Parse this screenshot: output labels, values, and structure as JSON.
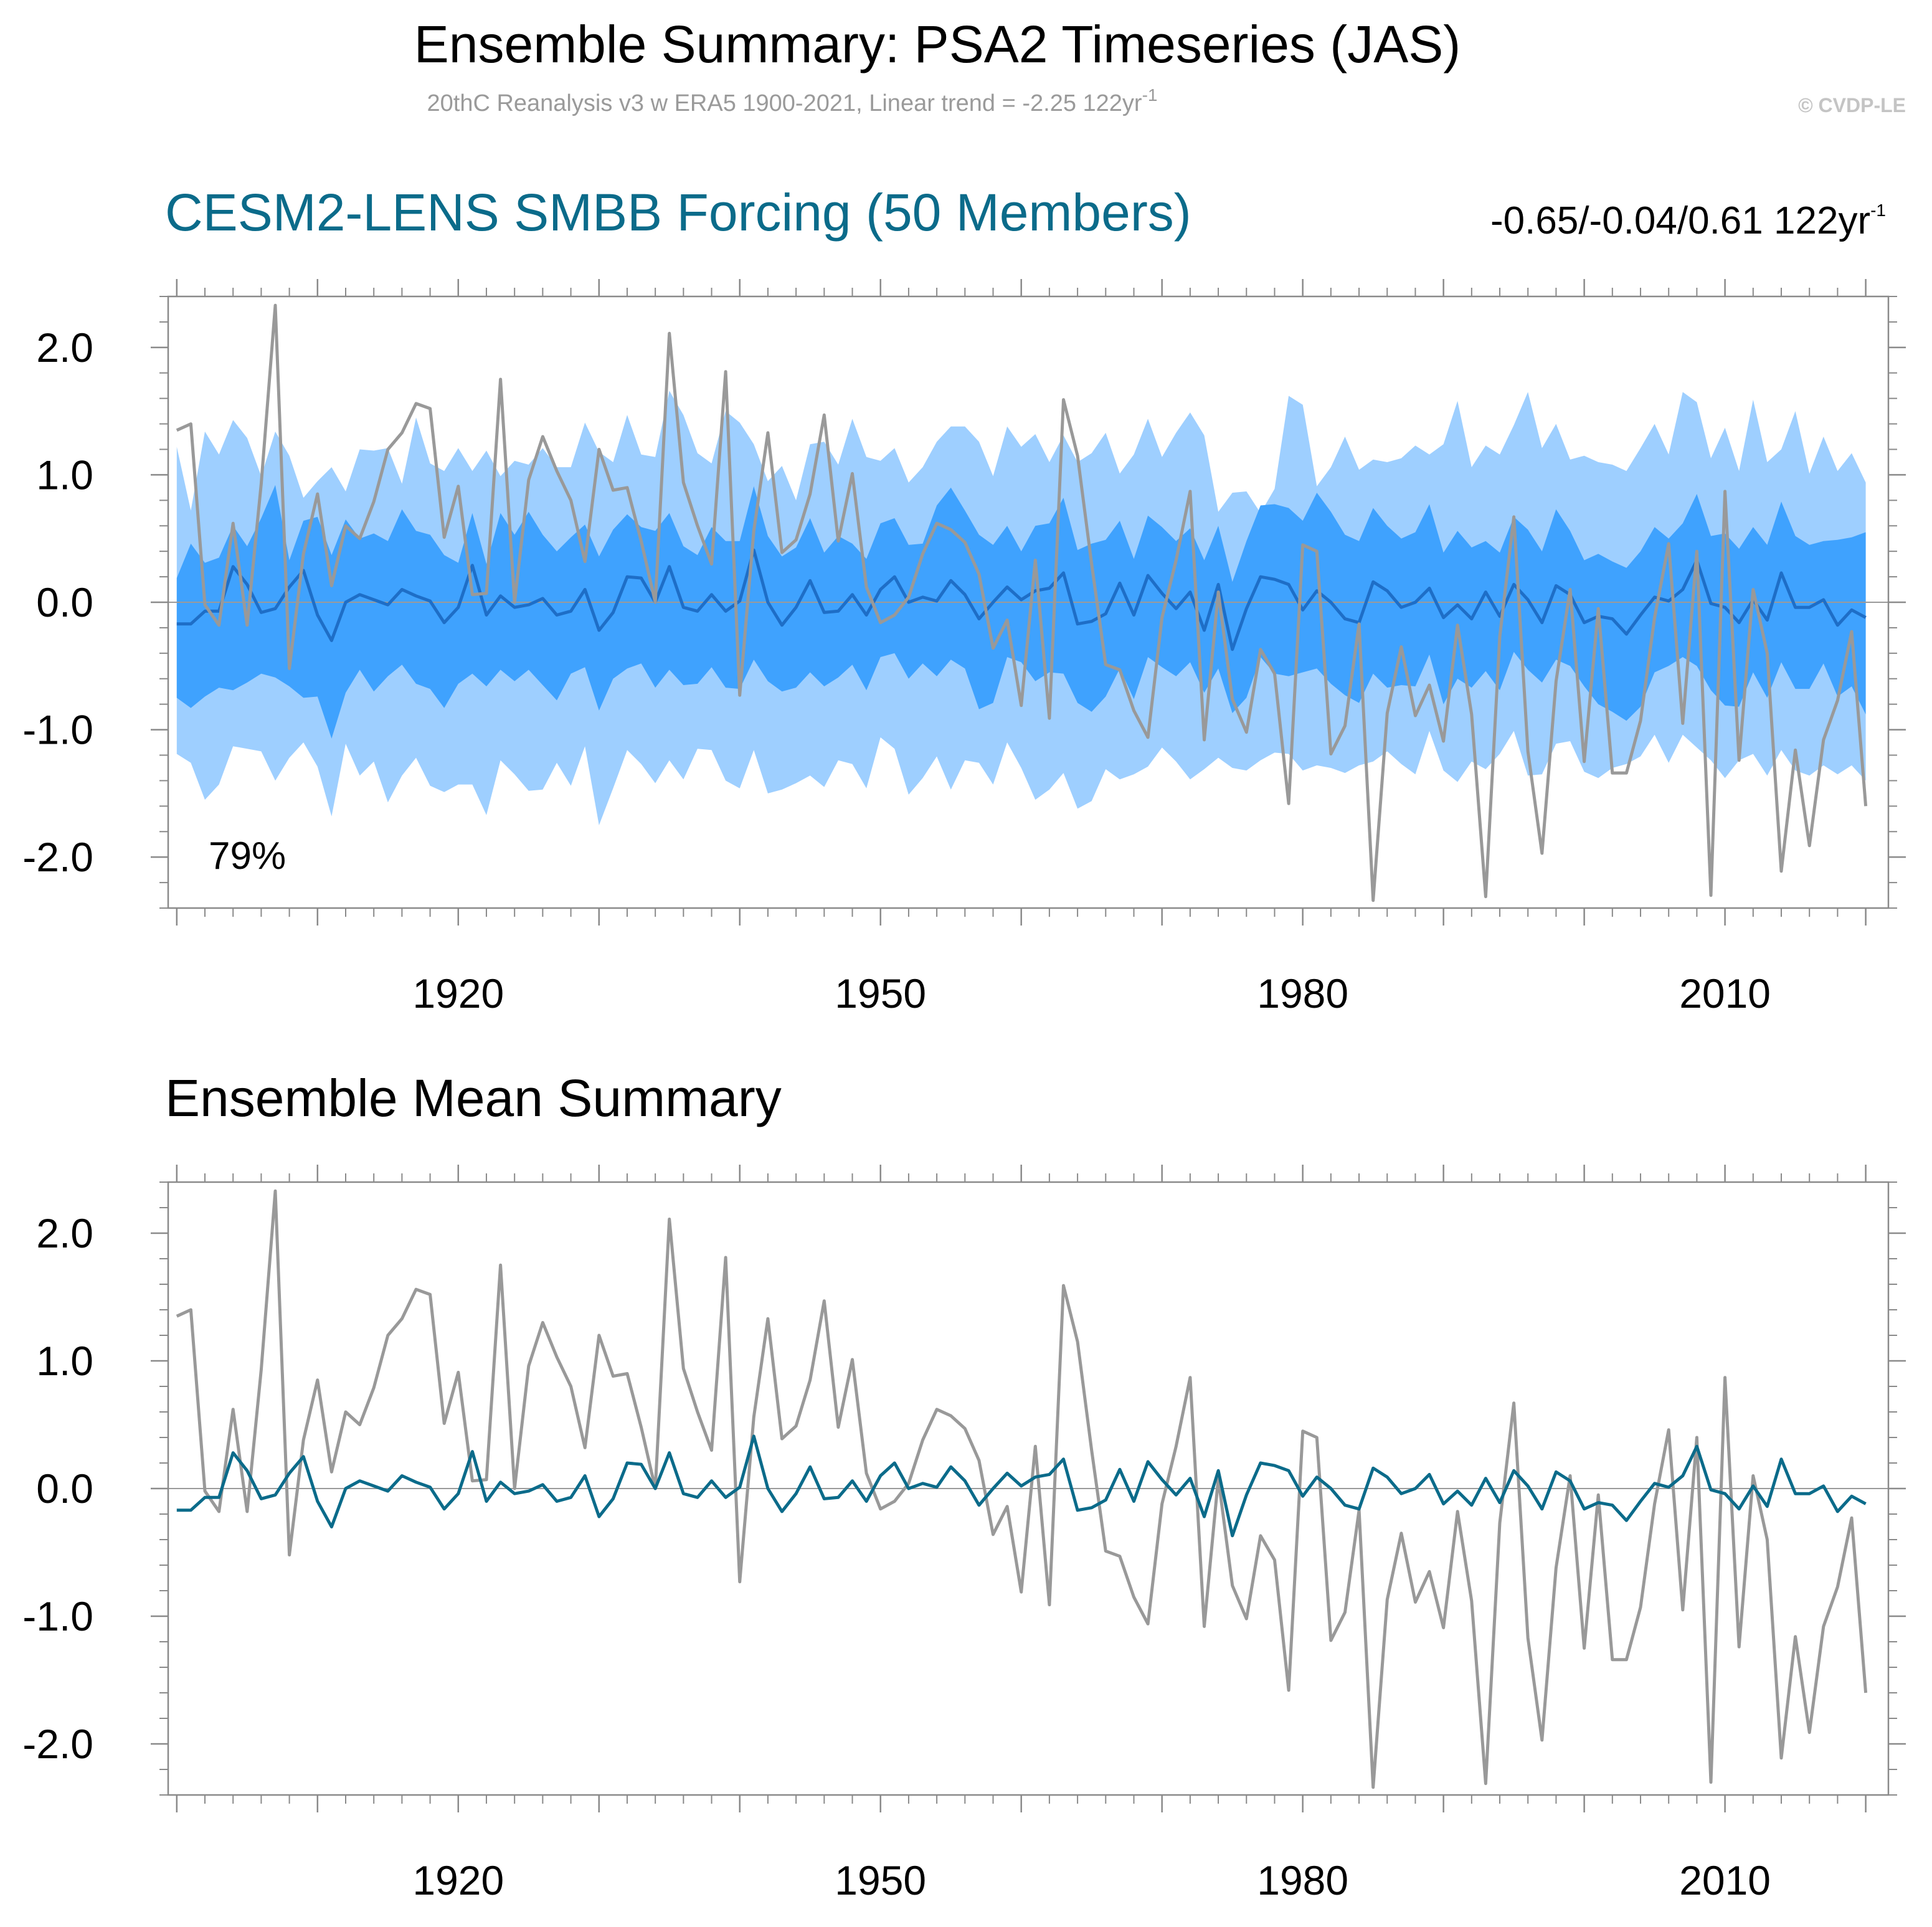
{
  "header": {
    "title": "Ensemble Summary: PSA2 Timeseries (JAS)",
    "subtitle": "20thC Reanalysis v3 w ERA5 1900-2021, Linear trend = -2.25 122yr",
    "subtitle_sup": "-1",
    "copyright": "© CVDP-LE"
  },
  "panel1": {
    "title": "CESM2-LENS SMBB Forcing (50 Members)",
    "trend_text": "-0.65/-0.04/0.61 122yr",
    "trend_sup": "-1",
    "percent_label": "79%"
  },
  "panel2": {
    "title": "Ensemble Mean Summary"
  },
  "colors": {
    "outer_band": "#9ecfff",
    "inner_band": "#3fa2fe",
    "panel1_mean_line": "#1e6ec7",
    "panel2_mean_line": "#0b6b8a",
    "observed_line": "#999999",
    "title_blue": "#0b6b8a",
    "axis": "#8a8a8a"
  },
  "chart_data": [
    {
      "type": "area",
      "xlim": [
        1900,
        2021
      ],
      "ylim": [
        -2.4,
        2.4
      ],
      "x_ticks": [
        1920,
        1950,
        1980,
        2010
      ],
      "y_ticks": [
        2.0,
        1.0,
        0.0,
        -1.0,
        -2.0
      ],
      "y_tick_labels": [
        "2.0",
        "1.0",
        "0.0",
        "-1.0",
        "-2.0"
      ],
      "years_start": 1900,
      "series": [
        {
          "name": "observed",
          "values": [
            1.35,
            1.4,
            -0.02,
            -0.18,
            0.62,
            -0.18,
            0.93,
            2.33,
            -0.52,
            0.38,
            0.85,
            0.13,
            0.6,
            0.5,
            0.79,
            1.2,
            1.33,
            1.56,
            1.52,
            0.51,
            0.91,
            0.06,
            0.07,
            1.75,
            0.0,
            0.96,
            1.3,
            1.03,
            0.8,
            0.32,
            1.2,
            0.88,
            0.9,
            0.48,
            0.0,
            2.11,
            0.94,
            0.6,
            0.3,
            1.81,
            -0.73,
            0.56,
            1.33,
            0.39,
            0.49,
            0.85,
            1.47,
            0.48,
            1.01,
            0.12,
            -0.16,
            -0.1,
            0.04,
            0.38,
            0.62,
            0.57,
            0.47,
            0.22,
            -0.36,
            -0.14,
            -0.81,
            0.33,
            -0.91,
            1.59,
            1.15,
            0.3,
            -0.49,
            -0.53,
            -0.85,
            -1.06,
            -0.12,
            0.33,
            0.87,
            -1.08,
            0.08,
            -0.76,
            -1.02,
            -0.37,
            -0.56,
            -1.58,
            0.45,
            0.4,
            -1.19,
            -0.97,
            -0.17,
            -2.34,
            -0.87,
            -0.35,
            -0.89,
            -0.65,
            -1.09,
            -0.18,
            -0.88,
            -2.31,
            -0.27,
            0.67,
            -1.17,
            -1.97,
            -0.62,
            0.1,
            -1.25,
            -0.05,
            -1.34,
            -1.34,
            -0.93,
            -0.12,
            0.46,
            -0.95,
            0.4,
            -2.3,
            0.87,
            -1.24,
            0.1,
            -0.4,
            -2.11,
            -1.16,
            -1.91,
            -1.08,
            -0.77,
            -0.23,
            -1.6
          ]
        },
        {
          "name": "ensemble_mean",
          "values": [
            -0.17,
            -0.17,
            -0.07,
            -0.07,
            0.28,
            0.14,
            -0.08,
            -0.05,
            0.12,
            0.25,
            -0.1,
            -0.3,
            0.0,
            0.06,
            0.02,
            -0.02,
            0.1,
            0.05,
            0.01,
            -0.16,
            -0.04,
            0.29,
            -0.1,
            0.05,
            -0.04,
            -0.02,
            0.03,
            -0.1,
            -0.07,
            0.1,
            -0.22,
            -0.08,
            0.2,
            0.19,
            0.0,
            0.28,
            -0.04,
            -0.07,
            0.06,
            -0.07,
            0.01,
            0.41,
            0.0,
            -0.18,
            -0.04,
            0.17,
            -0.08,
            -0.07,
            0.06,
            -0.1,
            0.1,
            0.2,
            0.0,
            0.04,
            0.01,
            0.17,
            0.06,
            -0.13,
            0.0,
            0.12,
            0.02,
            0.09,
            0.11,
            0.23,
            -0.17,
            -0.15,
            -0.09,
            0.15,
            -0.1,
            0.21,
            0.07,
            -0.05,
            0.08,
            -0.22,
            0.14,
            -0.37,
            -0.05,
            0.2,
            0.18,
            0.14,
            -0.06,
            0.09,
            0.0,
            -0.13,
            -0.16,
            0.16,
            0.09,
            -0.04,
            0.0,
            0.11,
            -0.12,
            -0.02,
            -0.13,
            0.08,
            -0.11,
            0.14,
            0.02,
            -0.16,
            0.13,
            0.06,
            -0.16,
            -0.11,
            -0.13,
            -0.25,
            -0.1,
            0.04,
            0.01,
            0.1,
            0.33,
            -0.01,
            -0.04,
            -0.16,
            0.02,
            -0.14,
            0.23,
            -0.04,
            -0.04,
            0.02,
            -0.18,
            -0.06,
            -0.12
          ]
        },
        {
          "name": "ensemble_90th",
          "values": [
            0.19,
            0.46,
            0.31,
            0.35,
            0.6,
            0.44,
            0.66,
            0.92,
            0.33,
            0.64,
            0.67,
            0.37,
            0.65,
            0.5,
            0.54,
            0.48,
            0.73,
            0.56,
            0.53,
            0.37,
            0.31,
            0.7,
            0.3,
            0.7,
            0.53,
            0.71,
            0.53,
            0.4,
            0.51,
            0.61,
            0.36,
            0.57,
            0.69,
            0.59,
            0.56,
            0.7,
            0.44,
            0.37,
            0.59,
            0.48,
            0.48,
            0.91,
            0.52,
            0.36,
            0.43,
            0.66,
            0.39,
            0.52,
            0.46,
            0.34,
            0.62,
            0.66,
            0.45,
            0.46,
            0.76,
            0.9,
            0.72,
            0.53,
            0.45,
            0.6,
            0.4,
            0.6,
            0.62,
            0.82,
            0.41,
            0.46,
            0.49,
            0.64,
            0.34,
            0.68,
            0.59,
            0.48,
            0.58,
            0.33,
            0.6,
            0.16,
            0.48,
            0.76,
            0.77,
            0.74,
            0.64,
            0.86,
            0.71,
            0.53,
            0.48,
            0.74,
            0.6,
            0.5,
            0.55,
            0.77,
            0.39,
            0.56,
            0.43,
            0.48,
            0.39,
            0.67,
            0.57,
            0.4,
            0.73,
            0.56,
            0.33,
            0.38,
            0.32,
            0.27,
            0.4,
            0.59,
            0.5,
            0.62,
            0.85,
            0.52,
            0.54,
            0.42,
            0.59,
            0.45,
            0.79,
            0.52,
            0.45,
            0.48,
            0.49,
            0.51,
            0.55
          ]
        },
        {
          "name": "ensemble_10th",
          "values": [
            -0.75,
            -0.83,
            -0.74,
            -0.67,
            -0.69,
            -0.63,
            -0.56,
            -0.59,
            -0.66,
            -0.75,
            -0.74,
            -1.07,
            -0.71,
            -0.53,
            -0.7,
            -0.58,
            -0.49,
            -0.64,
            -0.68,
            -0.83,
            -0.64,
            -0.56,
            -0.66,
            -0.53,
            -0.62,
            -0.53,
            -0.65,
            -0.77,
            -0.56,
            -0.51,
            -0.85,
            -0.6,
            -0.52,
            -0.48,
            -0.67,
            -0.53,
            -0.65,
            -0.64,
            -0.51,
            -0.67,
            -0.68,
            -0.45,
            -0.62,
            -0.7,
            -0.67,
            -0.55,
            -0.66,
            -0.59,
            -0.49,
            -0.69,
            -0.43,
            -0.4,
            -0.6,
            -0.48,
            -0.58,
            -0.45,
            -0.52,
            -0.84,
            -0.79,
            -0.43,
            -0.47,
            -0.62,
            -0.55,
            -0.56,
            -0.79,
            -0.86,
            -0.74,
            -0.52,
            -0.76,
            -0.43,
            -0.51,
            -0.58,
            -0.47,
            -0.71,
            -0.52,
            -0.87,
            -0.75,
            -0.43,
            -0.56,
            -0.58,
            -0.55,
            -0.52,
            -0.64,
            -0.73,
            -0.79,
            -0.56,
            -0.67,
            -0.65,
            -0.66,
            -0.41,
            -0.8,
            -0.6,
            -0.67,
            -0.54,
            -0.69,
            -0.39,
            -0.53,
            -0.63,
            -0.45,
            -0.5,
            -0.66,
            -0.8,
            -0.86,
            -0.93,
            -0.82,
            -0.55,
            -0.5,
            -0.43,
            -0.5,
            -0.69,
            -0.81,
            -0.82,
            -0.55,
            -0.75,
            -0.47,
            -0.68,
            -0.68,
            -0.48,
            -0.74,
            -0.66,
            -0.88
          ]
        },
        {
          "name": "ensemble_97.5th",
          "values": [
            1.22,
            0.72,
            1.34,
            1.16,
            1.43,
            1.29,
            0.99,
            1.34,
            1.15,
            0.82,
            0.95,
            1.06,
            0.87,
            1.2,
            1.19,
            1.21,
            0.93,
            1.45,
            1.09,
            1.03,
            1.21,
            1.03,
            1.19,
            0.99,
            1.11,
            1.08,
            1.21,
            1.06,
            1.06,
            1.41,
            1.18,
            1.1,
            1.47,
            1.16,
            1.14,
            1.66,
            1.47,
            1.17,
            1.09,
            1.5,
            1.41,
            1.24,
            0.95,
            1.07,
            0.8,
            1.24,
            1.26,
            1.08,
            1.44,
            1.14,
            1.11,
            1.21,
            0.94,
            1.06,
            1.26,
            1.38,
            1.38,
            1.26,
            0.99,
            1.38,
            1.22,
            1.32,
            1.1,
            1.31,
            1.1,
            1.17,
            1.33,
            1.01,
            1.16,
            1.44,
            1.14,
            1.33,
            1.49,
            1.31,
            0.71,
            0.86,
            0.87,
            0.7,
            0.89,
            1.62,
            1.55,
            0.91,
            1.06,
            1.3,
            1.04,
            1.12,
            1.1,
            1.13,
            1.23,
            1.16,
            1.24,
            1.58,
            1.06,
            1.23,
            1.16,
            1.39,
            1.65,
            1.21,
            1.4,
            1.12,
            1.15,
            1.1,
            1.08,
            1.03,
            1.21,
            1.4,
            1.16,
            1.65,
            1.57,
            1.13,
            1.37,
            1.03,
            1.59,
            1.1,
            1.2,
            1.5,
            1.01,
            1.3,
            1.03,
            1.17,
            0.94
          ]
        },
        {
          "name": "ensemble_2.5th",
          "values": [
            -1.19,
            -1.26,
            -1.55,
            -1.43,
            -1.13,
            -1.15,
            -1.17,
            -1.4,
            -1.22,
            -1.1,
            -1.29,
            -1.68,
            -1.11,
            -1.36,
            -1.25,
            -1.57,
            -1.36,
            -1.22,
            -1.44,
            -1.49,
            -1.43,
            -1.43,
            -1.67,
            -1.24,
            -1.35,
            -1.48,
            -1.47,
            -1.26,
            -1.44,
            -1.13,
            -1.75,
            -1.46,
            -1.16,
            -1.27,
            -1.42,
            -1.24,
            -1.39,
            -1.15,
            -1.16,
            -1.4,
            -1.46,
            -1.16,
            -1.5,
            -1.47,
            -1.42,
            -1.36,
            -1.45,
            -1.24,
            -1.27,
            -1.46,
            -1.06,
            -1.15,
            -1.51,
            -1.38,
            -1.21,
            -1.47,
            -1.24,
            -1.26,
            -1.43,
            -1.1,
            -1.3,
            -1.55,
            -1.47,
            -1.34,
            -1.62,
            -1.56,
            -1.31,
            -1.39,
            -1.35,
            -1.29,
            -1.14,
            -1.25,
            -1.39,
            -1.31,
            -1.22,
            -1.3,
            -1.32,
            -1.24,
            -1.18,
            -1.19,
            -1.32,
            -1.28,
            -1.3,
            -1.34,
            -1.28,
            -1.25,
            -1.17,
            -1.27,
            -1.35,
            -1.01,
            -1.32,
            -1.41,
            -1.25,
            -1.31,
            -1.19,
            -1.01,
            -1.36,
            -1.35,
            -1.11,
            -1.09,
            -1.33,
            -1.38,
            -1.3,
            -1.27,
            -1.21,
            -1.04,
            -1.26,
            -1.04,
            -1.14,
            -1.24,
            -1.38,
            -1.24,
            -1.19,
            -1.36,
            -1.16,
            -1.32,
            -1.36,
            -1.28,
            -1.35,
            -1.28,
            -1.4
          ]
        }
      ]
    },
    {
      "type": "line",
      "xlim": [
        1900,
        2021
      ],
      "ylim": [
        -2.4,
        2.4
      ],
      "x_ticks": [
        1920,
        1950,
        1980,
        2010
      ],
      "y_ticks": [
        2.0,
        1.0,
        0.0,
        -1.0,
        -2.0
      ],
      "y_tick_labels": [
        "2.0",
        "1.0",
        "0.0",
        "-1.0",
        "-2.0"
      ],
      "years_start": 1900,
      "series_ref": [
        "observed",
        "ensemble_mean"
      ]
    }
  ]
}
